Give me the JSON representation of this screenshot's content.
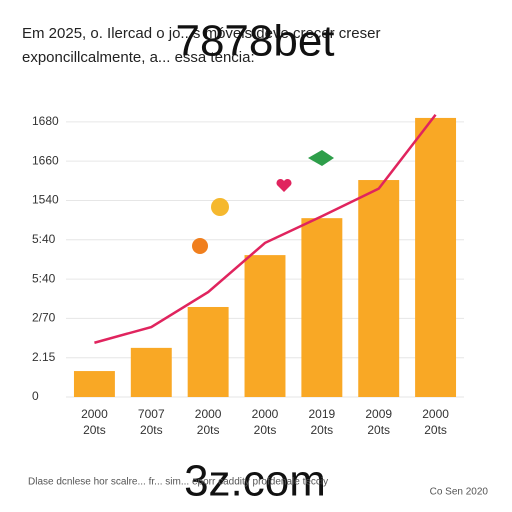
{
  "chart_data": {
    "type": "bar",
    "title": "Em 2025, o. Ilercad o jo...s móveis deve crecer creser",
    "subtitle": "exponcillcalmente, a... essa tencia:",
    "watermark": "7878bet",
    "bottom_watermark": "3z.com",
    "footnote": "Dlase dcnlese hor scalre... fr... sim... eporr caddity profdenale tecciy",
    "source": "Co Sen 2020",
    "categories": [
      "2000",
      "7007",
      "2000",
      "2000",
      "2019",
      "2009",
      "2000"
    ],
    "category_sublabels": [
      "20ts",
      "20ts",
      "20ts",
      "20ts",
      "20ts",
      "20ts",
      "20ts"
    ],
    "ylim": [
      0,
      7.2
    ],
    "yticks": [
      {
        "value": 0,
        "label": "0"
      },
      {
        "value": 1,
        "label": "2.15"
      },
      {
        "value": 2,
        "label": "2/70"
      },
      {
        "value": 3,
        "label": "5:40"
      },
      {
        "value": 4,
        "label": "5:40"
      },
      {
        "value": 5,
        "label": "1540"
      },
      {
        "value": 6,
        "label": "1660"
      },
      {
        "value": 7,
        "label": "1680"
      }
    ],
    "grid": true,
    "series": [
      {
        "name": "bars",
        "kind": "bar",
        "color": "#f9a825",
        "values": [
          0.66,
          1.25,
          2.29,
          3.61,
          4.55,
          5.52,
          7.1
        ]
      },
      {
        "name": "trend",
        "kind": "line",
        "color": "#e0245e",
        "values": [
          1.38,
          1.78,
          2.67,
          3.92,
          4.6,
          5.3,
          7.18
        ]
      }
    ]
  }
}
